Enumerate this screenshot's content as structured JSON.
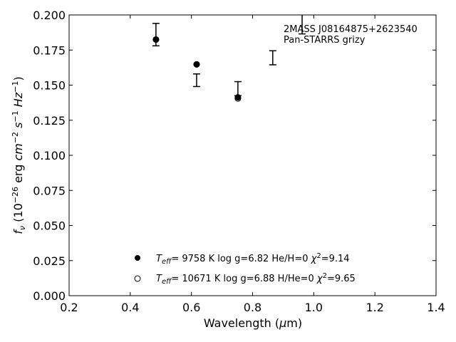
{
  "chart_data": {
    "type": "scatter",
    "title": "",
    "xlabel": "Wavelength (μm)",
    "ylabel": "f_ν (10^-26 erg cm^-2 s^-1 Hz^-1)",
    "xlim": [
      0.2,
      1.4
    ],
    "ylim": [
      0.0,
      0.2
    ],
    "x_ticks": [
      "0.2",
      "0.4",
      "0.6",
      "0.8",
      "1.0",
      "1.2",
      "1.4"
    ],
    "y_ticks": [
      "0.000",
      "0.025",
      "0.050",
      "0.075",
      "0.100",
      "0.125",
      "0.150",
      "0.175",
      "0.200"
    ],
    "annotation": {
      "line1": "2MASS J08164875+2623540",
      "line2": "Pan-STARRS grizy"
    },
    "observed": {
      "x": [
        0.484,
        0.617,
        0.752,
        0.866,
        0.962
      ],
      "y": [
        0.186,
        0.1535,
        0.1475,
        0.1695,
        0.195
      ],
      "yerr": [
        0.008,
        0.0045,
        0.005,
        0.005,
        0.0085
      ]
    },
    "series": [
      {
        "name": "Teff= 9758 K log g=6.82 He/H=0 χ2=9.14",
        "marker": "filled-circle",
        "x": [
          0.484,
          0.617,
          0.752
        ],
        "y": [
          0.1825,
          0.1648,
          0.1413
        ]
      },
      {
        "name": "Teff= 10671 K log g=6.88 H/He=0 χ2=9.65",
        "marker": "open-circle",
        "x": [
          0.484,
          0.617,
          0.752
        ],
        "y": [
          0.1825,
          0.1648,
          0.1405
        ]
      }
    ],
    "legend": {
      "placement": "lower-center",
      "entries": [
        {
          "teff_value": "=  9758 K  log g=6.82  He/H=0  ",
          "chi_value": "=9.14"
        },
        {
          "teff_value": "= 10671 K  log g=6.88  H/He=0  ",
          "chi_value": "=9.65"
        }
      ]
    },
    "grid": false
  }
}
